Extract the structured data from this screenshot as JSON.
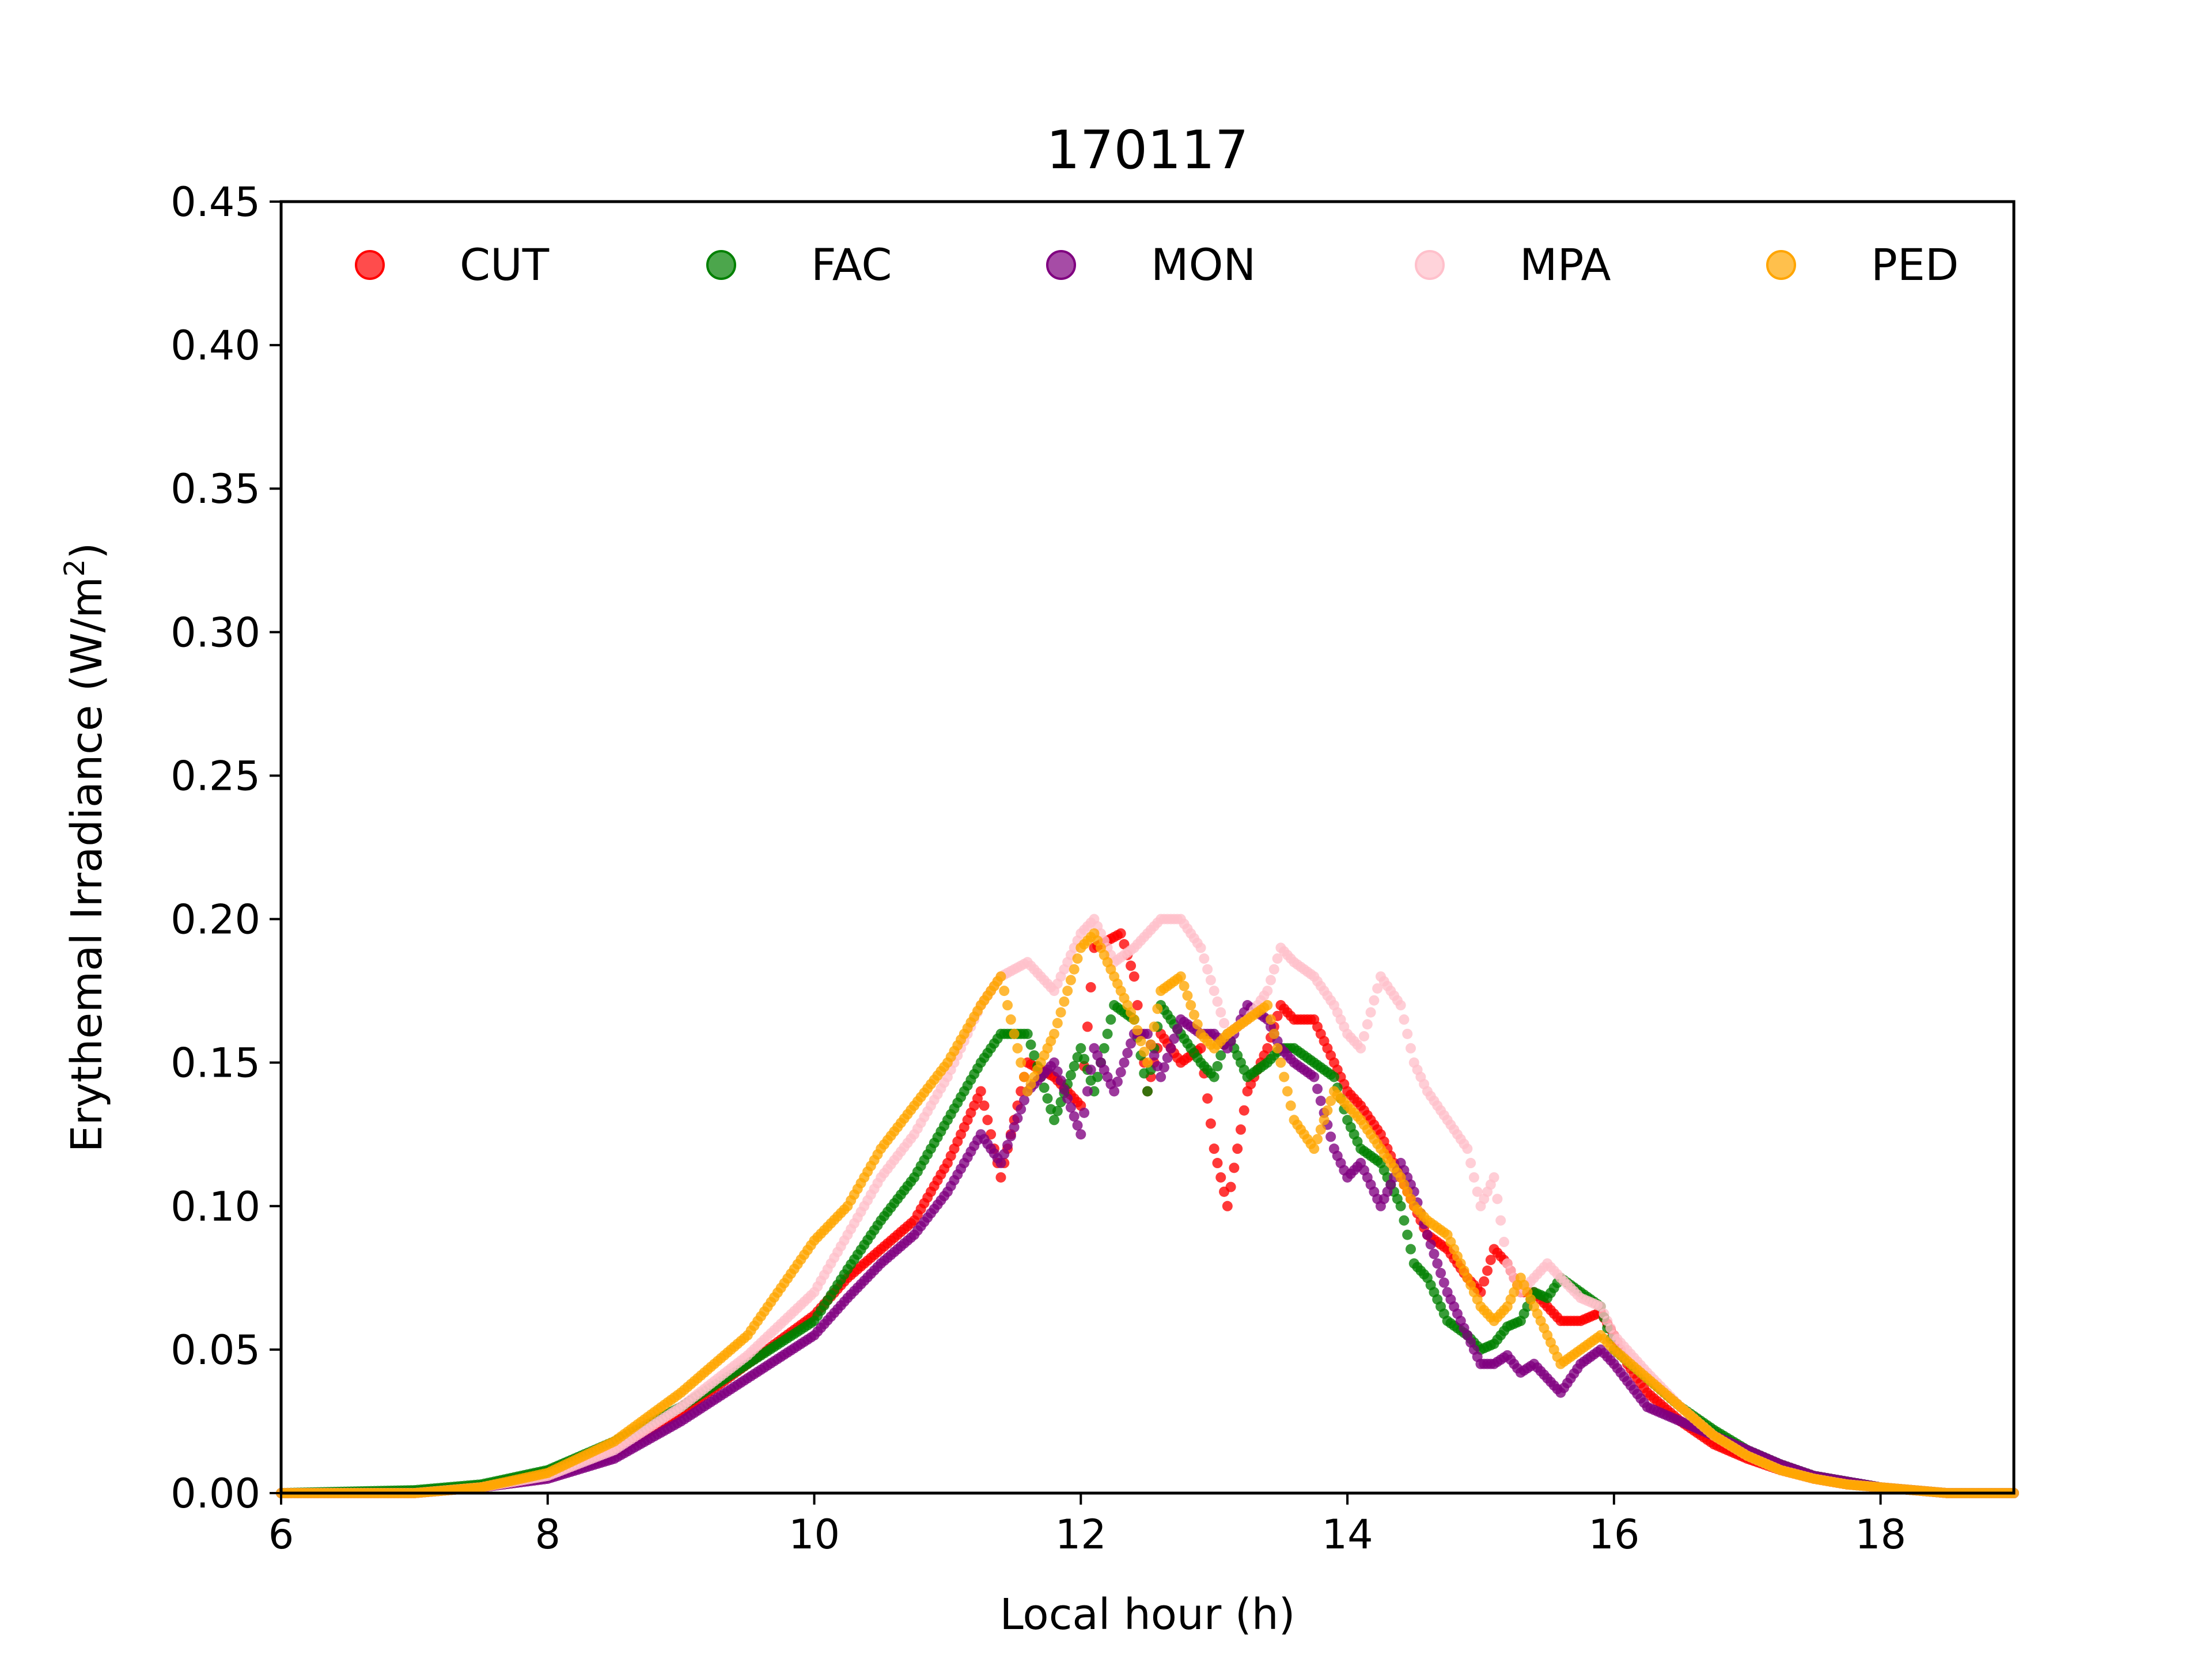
{
  "chart_data": {
    "type": "scatter",
    "title": "170117",
    "xlabel": "Local hour (h)",
    "ylabel_main": "Erythemal Irradiance (W/m",
    "ylabel_sup": "2",
    "ylabel_close": ")",
    "xlim": [
      6,
      19
    ],
    "ylim": [
      0,
      0.45
    ],
    "xticks": [
      6,
      8,
      10,
      12,
      14,
      16,
      18
    ],
    "xtick_labels": [
      "6",
      "8",
      "10",
      "12",
      "14",
      "16",
      "18"
    ],
    "yticks": [
      0,
      0.05,
      0.1,
      0.15,
      0.2,
      0.25,
      0.3,
      0.35,
      0.4,
      0.45
    ],
    "ytick_labels": [
      "0.00",
      "0.05",
      "0.10",
      "0.15",
      "0.20",
      "0.25",
      "0.30",
      "0.35",
      "0.40",
      "0.45"
    ],
    "legend_position": "top",
    "grid": false,
    "series": [
      {
        "name": "CUT",
        "color": "#ff0000",
        "x": [
          6.0,
          7.0,
          7.5,
          8.0,
          8.5,
          9.0,
          9.5,
          10.0,
          10.25,
          10.5,
          10.75,
          11.0,
          11.25,
          11.4,
          11.6,
          11.8,
          12.0,
          12.1,
          12.3,
          12.4,
          12.5,
          12.6,
          12.75,
          12.9,
          13.0,
          13.1,
          13.25,
          13.4,
          13.5,
          13.6,
          13.75,
          13.9,
          14.0,
          14.1,
          14.25,
          14.4,
          14.5,
          14.6,
          14.75,
          14.9,
          15.0,
          15.1,
          15.2,
          15.3,
          15.4,
          15.5,
          15.6,
          15.75,
          15.9,
          16.0,
          16.1,
          16.25,
          16.5,
          16.75,
          17.0,
          17.25,
          17.5,
          17.75,
          18.0,
          18.5,
          19.0
        ],
        "y": [
          0.0,
          0.0,
          0.002,
          0.006,
          0.014,
          0.028,
          0.045,
          0.062,
          0.075,
          0.085,
          0.095,
          0.115,
          0.14,
          0.11,
          0.15,
          0.145,
          0.135,
          0.19,
          0.195,
          0.18,
          0.14,
          0.16,
          0.15,
          0.155,
          0.12,
          0.1,
          0.14,
          0.155,
          0.17,
          0.165,
          0.165,
          0.15,
          0.14,
          0.135,
          0.125,
          0.11,
          0.1,
          0.09,
          0.085,
          0.075,
          0.07,
          0.085,
          0.08,
          0.07,
          0.07,
          0.065,
          0.06,
          0.06,
          0.063,
          0.055,
          0.045,
          0.035,
          0.025,
          0.017,
          0.012,
          0.008,
          0.005,
          0.003,
          0.002,
          0.0,
          0.0
        ]
      },
      {
        "name": "FAC",
        "color": "#008000",
        "x": [
          6.0,
          7.0,
          7.5,
          8.0,
          8.5,
          9.0,
          9.5,
          10.0,
          10.25,
          10.5,
          10.75,
          11.0,
          11.25,
          11.4,
          11.6,
          11.8,
          12.0,
          12.1,
          12.25,
          12.4,
          12.5,
          12.6,
          12.75,
          12.9,
          13.0,
          13.1,
          13.25,
          13.4,
          13.5,
          13.6,
          13.75,
          13.9,
          14.0,
          14.1,
          14.25,
          14.4,
          14.5,
          14.6,
          14.75,
          14.9,
          15.0,
          15.1,
          15.2,
          15.3,
          15.4,
          15.5,
          15.6,
          15.75,
          15.9,
          16.0,
          16.25,
          16.5,
          16.75,
          17.0,
          17.25,
          17.5,
          17.75,
          18.0,
          18.5,
          19.0
        ],
        "y": [
          0.0,
          0.001,
          0.003,
          0.008,
          0.018,
          0.03,
          0.045,
          0.06,
          0.078,
          0.095,
          0.11,
          0.13,
          0.15,
          0.16,
          0.16,
          0.13,
          0.155,
          0.14,
          0.17,
          0.165,
          0.14,
          0.17,
          0.16,
          0.15,
          0.145,
          0.16,
          0.145,
          0.15,
          0.155,
          0.155,
          0.15,
          0.145,
          0.13,
          0.12,
          0.115,
          0.1,
          0.08,
          0.075,
          0.06,
          0.055,
          0.05,
          0.052,
          0.058,
          0.06,
          0.07,
          0.068,
          0.075,
          0.07,
          0.065,
          0.05,
          0.04,
          0.03,
          0.022,
          0.015,
          0.01,
          0.006,
          0.004,
          0.002,
          0.0,
          0.0
        ]
      },
      {
        "name": "MON",
        "color": "#800080",
        "x": [
          6.0,
          7.0,
          7.5,
          8.0,
          8.5,
          9.0,
          9.5,
          10.0,
          10.25,
          10.5,
          10.75,
          11.0,
          11.25,
          11.4,
          11.6,
          11.8,
          12.0,
          12.1,
          12.25,
          12.4,
          12.5,
          12.6,
          12.75,
          12.9,
          13.0,
          13.1,
          13.25,
          13.4,
          13.5,
          13.6,
          13.75,
          13.9,
          14.0,
          14.1,
          14.25,
          14.4,
          14.5,
          14.6,
          14.75,
          14.9,
          15.0,
          15.1,
          15.2,
          15.3,
          15.4,
          15.5,
          15.6,
          15.75,
          15.9,
          16.0,
          16.25,
          16.5,
          16.75,
          17.0,
          17.25,
          17.5,
          17.75,
          18.0,
          18.5,
          19.0
        ],
        "y": [
          0.0,
          0.0,
          0.002,
          0.005,
          0.012,
          0.025,
          0.04,
          0.055,
          0.068,
          0.08,
          0.09,
          0.105,
          0.125,
          0.115,
          0.14,
          0.15,
          0.125,
          0.155,
          0.14,
          0.16,
          0.16,
          0.145,
          0.165,
          0.16,
          0.16,
          0.155,
          0.17,
          0.165,
          0.155,
          0.15,
          0.145,
          0.12,
          0.11,
          0.115,
          0.1,
          0.115,
          0.105,
          0.09,
          0.07,
          0.055,
          0.045,
          0.045,
          0.048,
          0.042,
          0.045,
          0.04,
          0.035,
          0.045,
          0.05,
          0.045,
          0.03,
          0.025,
          0.02,
          0.015,
          0.01,
          0.006,
          0.004,
          0.002,
          0.0,
          0.0
        ]
      },
      {
        "name": "MPA",
        "color": "#ffc0cb",
        "x": [
          6.0,
          7.0,
          7.5,
          8.0,
          8.5,
          9.0,
          9.5,
          10.0,
          10.25,
          10.5,
          10.75,
          11.0,
          11.25,
          11.4,
          11.6,
          11.8,
          12.0,
          12.1,
          12.25,
          12.4,
          12.5,
          12.6,
          12.75,
          12.9,
          13.0,
          13.1,
          13.25,
          13.4,
          13.5,
          13.6,
          13.75,
          13.9,
          14.0,
          14.1,
          14.25,
          14.4,
          14.5,
          14.6,
          14.75,
          14.9,
          15.0,
          15.1,
          15.2,
          15.3,
          15.4,
          15.5,
          15.6,
          15.75,
          15.9,
          16.0,
          16.25,
          16.5,
          16.75,
          17.0,
          17.25,
          17.5,
          17.75,
          18.0,
          18.5,
          19.0
        ],
        "y": [
          0.0,
          0.0,
          0.002,
          0.006,
          0.015,
          0.03,
          0.048,
          0.07,
          0.09,
          0.11,
          0.125,
          0.145,
          0.17,
          0.18,
          0.185,
          0.175,
          0.195,
          0.2,
          0.185,
          0.19,
          0.195,
          0.2,
          0.2,
          0.19,
          0.175,
          0.16,
          0.165,
          0.175,
          0.19,
          0.185,
          0.18,
          0.17,
          0.16,
          0.155,
          0.18,
          0.17,
          0.15,
          0.14,
          0.13,
          0.12,
          0.1,
          0.11,
          0.08,
          0.07,
          0.075,
          0.08,
          0.075,
          0.068,
          0.065,
          0.055,
          0.042,
          0.03,
          0.02,
          0.013,
          0.008,
          0.005,
          0.003,
          0.002,
          0.0,
          0.0
        ]
      },
      {
        "name": "PED",
        "color": "#ffa500",
        "x": [
          6.0,
          7.0,
          7.5,
          8.0,
          8.5,
          9.0,
          9.5,
          10.0,
          10.25,
          10.5,
          10.75,
          11.0,
          11.25,
          11.4,
          11.6,
          11.8,
          12.0,
          12.1,
          12.25,
          12.4,
          12.5,
          12.6,
          12.75,
          12.9,
          13.0,
          13.1,
          13.25,
          13.4,
          13.5,
          13.6,
          13.75,
          13.9,
          14.0,
          14.1,
          14.25,
          14.4,
          14.5,
          14.6,
          14.75,
          14.9,
          15.0,
          15.1,
          15.2,
          15.3,
          15.4,
          15.5,
          15.6,
          15.75,
          15.9,
          16.0,
          16.25,
          16.5,
          16.75,
          17.0,
          17.25,
          17.5,
          17.75,
          18.0,
          18.5,
          19.0
        ],
        "y": [
          0.0,
          0.0,
          0.002,
          0.007,
          0.018,
          0.035,
          0.055,
          0.088,
          0.1,
          0.12,
          0.135,
          0.15,
          0.17,
          0.18,
          0.14,
          0.16,
          0.19,
          0.195,
          0.18,
          0.165,
          0.15,
          0.175,
          0.18,
          0.16,
          0.155,
          0.16,
          0.165,
          0.17,
          0.15,
          0.13,
          0.12,
          0.14,
          0.135,
          0.13,
          0.12,
          0.11,
          0.1,
          0.095,
          0.09,
          0.075,
          0.065,
          0.06,
          0.065,
          0.075,
          0.065,
          0.055,
          0.045,
          0.05,
          0.055,
          0.05,
          0.04,
          0.03,
          0.02,
          0.013,
          0.008,
          0.005,
          0.003,
          0.002,
          0.0,
          0.0
        ]
      }
    ]
  }
}
